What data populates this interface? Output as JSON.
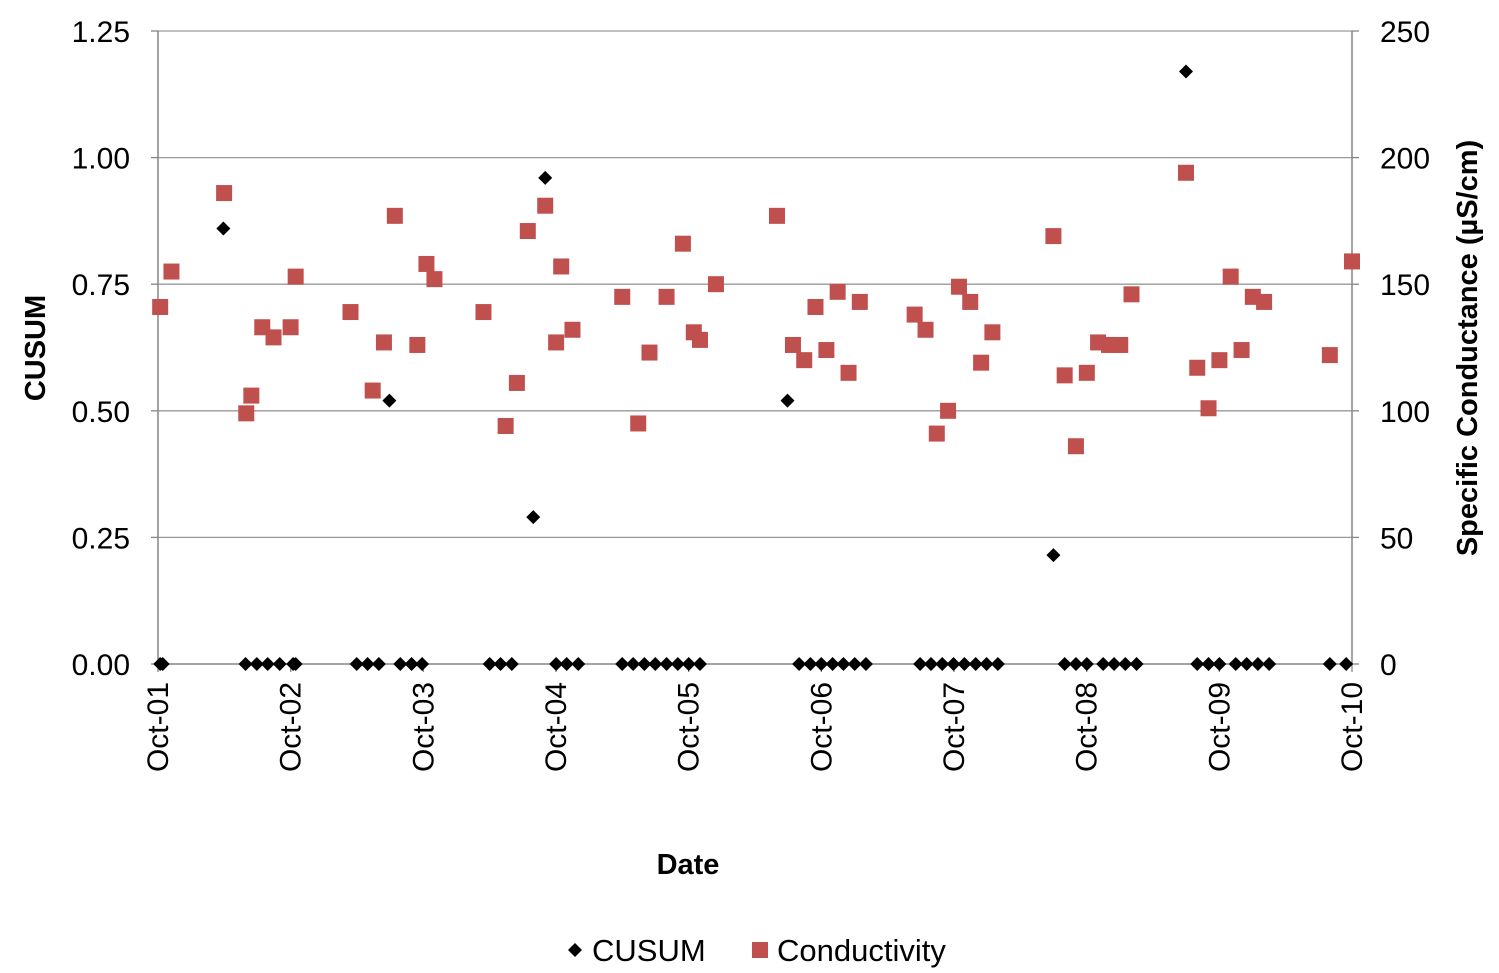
{
  "chart_data": {
    "type": "scatter",
    "title": "",
    "xlabel": "Date",
    "ylabel": "CUSUM",
    "y2label": "Specific Conductance (µS/cm)",
    "x_ticks": [
      "Oct-01",
      "Oct-02",
      "Oct-03",
      "Oct-04",
      "Oct-05",
      "Oct-06",
      "Oct-07",
      "Oct-08",
      "Oct-09",
      "Oct-10"
    ],
    "xlim": [
      "2001-10-01",
      "2010-10-01"
    ],
    "ylim": [
      0,
      1.25
    ],
    "y_ticks": [
      "0.00",
      "0.25",
      "0.50",
      "0.75",
      "1.00",
      "1.25"
    ],
    "y2lim": [
      0,
      250
    ],
    "y2_ticks": [
      "0",
      "50",
      "100",
      "150",
      "200",
      "250"
    ],
    "grid": "horizontal",
    "legend_position": "bottom",
    "series": [
      {
        "name": "CUSUM",
        "axis": "left",
        "marker": "diamond",
        "color": "#000000",
        "points": [
          [
            "2001-10-07",
            0
          ],
          [
            "2001-10-14",
            0
          ],
          [
            "2002-03-30",
            0.86
          ],
          [
            "2002-05-30",
            0
          ],
          [
            "2002-06-30",
            0
          ],
          [
            "2002-07-30",
            0
          ],
          [
            "2002-09-01",
            0
          ],
          [
            "2002-10-08",
            0
          ],
          [
            "2002-10-15",
            0
          ],
          [
            "2003-04-01",
            0
          ],
          [
            "2003-05-01",
            0
          ],
          [
            "2003-06-01",
            0
          ],
          [
            "2003-06-30",
            0.52
          ],
          [
            "2003-07-30",
            0
          ],
          [
            "2003-08-30",
            0
          ],
          [
            "2003-09-28",
            0
          ],
          [
            "2004-04-01",
            0
          ],
          [
            "2004-05-01",
            0
          ],
          [
            "2004-06-01",
            0
          ],
          [
            "2004-07-30",
            0.29
          ],
          [
            "2004-09-01",
            0.96
          ],
          [
            "2004-10-01",
            0
          ],
          [
            "2004-10-30",
            0
          ],
          [
            "2004-12-01",
            0
          ],
          [
            "2005-04-01",
            0
          ],
          [
            "2005-05-01",
            0
          ],
          [
            "2005-06-01",
            0
          ],
          [
            "2005-07-01",
            0
          ],
          [
            "2005-08-01",
            0
          ],
          [
            "2005-09-01",
            0
          ],
          [
            "2005-10-01",
            0
          ],
          [
            "2005-11-01",
            0
          ],
          [
            "2006-06-30",
            0.52
          ],
          [
            "2006-08-01",
            0
          ],
          [
            "2006-09-01",
            0
          ],
          [
            "2006-10-01",
            0
          ],
          [
            "2006-11-01",
            0
          ],
          [
            "2006-12-01",
            0
          ],
          [
            "2007-01-01",
            0
          ],
          [
            "2007-02-01",
            0
          ],
          [
            "2007-06-30",
            0
          ],
          [
            "2007-07-30",
            0
          ],
          [
            "2007-08-30",
            0
          ],
          [
            "2007-09-30",
            0
          ],
          [
            "2007-10-30",
            0
          ],
          [
            "2007-11-30",
            0
          ],
          [
            "2007-12-30",
            0
          ],
          [
            "2008-01-30",
            0
          ],
          [
            "2008-07-01",
            0.215
          ],
          [
            "2008-08-01",
            0
          ],
          [
            "2008-09-01",
            0
          ],
          [
            "2008-10-01",
            0
          ],
          [
            "2008-11-15",
            0
          ],
          [
            "2008-12-15",
            0
          ],
          [
            "2009-01-15",
            0
          ],
          [
            "2009-02-15",
            0
          ],
          [
            "2009-07-01",
            1.17
          ],
          [
            "2009-08-01",
            0
          ],
          [
            "2009-09-01",
            0
          ],
          [
            "2009-10-01",
            0
          ],
          [
            "2009-11-15",
            0
          ],
          [
            "2009-12-15",
            0
          ],
          [
            "2010-01-15",
            0
          ],
          [
            "2010-02-15",
            0
          ],
          [
            "2010-08-01",
            0
          ],
          [
            "2010-09-15",
            0
          ]
        ]
      },
      {
        "name": "Conductivity",
        "axis": "right",
        "marker": "square",
        "color": "#c0504d",
        "points": [
          [
            "2001-10-07",
            141
          ],
          [
            "2001-11-07",
            155
          ],
          [
            "2002-04-01",
            186
          ],
          [
            "2002-06-01",
            99
          ],
          [
            "2002-06-15",
            106
          ],
          [
            "2002-07-15",
            133
          ],
          [
            "2002-08-15",
            129
          ],
          [
            "2002-10-01",
            133
          ],
          [
            "2002-10-15",
            153
          ],
          [
            "2003-03-15",
            139
          ],
          [
            "2003-05-15",
            108
          ],
          [
            "2003-06-15",
            127
          ],
          [
            "2003-07-15",
            177
          ],
          [
            "2003-09-15",
            126
          ],
          [
            "2003-10-10",
            158
          ],
          [
            "2003-11-01",
            152
          ],
          [
            "2004-03-15",
            139
          ],
          [
            "2004-05-15",
            94
          ],
          [
            "2004-06-15",
            111
          ],
          [
            "2004-07-15",
            171
          ],
          [
            "2004-09-01",
            181
          ],
          [
            "2004-10-01",
            127
          ],
          [
            "2004-10-15",
            157
          ],
          [
            "2004-11-15",
            132
          ],
          [
            "2005-04-01",
            145
          ],
          [
            "2005-05-15",
            95
          ],
          [
            "2005-06-15",
            123
          ],
          [
            "2005-08-01",
            145
          ],
          [
            "2005-09-15",
            166
          ],
          [
            "2005-10-15",
            131
          ],
          [
            "2005-11-01",
            128
          ],
          [
            "2005-12-15",
            150
          ],
          [
            "2006-06-01",
            177
          ],
          [
            "2006-07-15",
            126
          ],
          [
            "2006-08-15",
            120
          ],
          [
            "2006-09-15",
            141
          ],
          [
            "2006-10-15",
            124
          ],
          [
            "2006-11-15",
            147
          ],
          [
            "2006-12-15",
            115
          ],
          [
            "2007-01-15",
            143
          ],
          [
            "2007-06-15",
            138
          ],
          [
            "2007-07-15",
            132
          ],
          [
            "2007-08-15",
            91
          ],
          [
            "2007-09-15",
            100
          ],
          [
            "2007-10-15",
            149
          ],
          [
            "2007-11-15",
            143
          ],
          [
            "2007-12-15",
            119
          ],
          [
            "2008-01-15",
            131
          ],
          [
            "2008-07-01",
            169
          ],
          [
            "2008-08-01",
            114
          ],
          [
            "2008-09-01",
            86
          ],
          [
            "2008-10-01",
            115
          ],
          [
            "2008-11-01",
            127
          ],
          [
            "2008-12-01",
            126
          ],
          [
            "2009-01-01",
            126
          ],
          [
            "2009-02-01",
            146
          ],
          [
            "2009-07-01",
            194
          ],
          [
            "2009-08-01",
            117
          ],
          [
            "2009-09-01",
            101
          ],
          [
            "2009-10-01",
            120
          ],
          [
            "2009-11-01",
            153
          ],
          [
            "2009-12-01",
            124
          ],
          [
            "2010-01-01",
            145
          ],
          [
            "2010-02-01",
            143
          ],
          [
            "2010-08-01",
            122
          ],
          [
            "2010-10-01",
            159
          ]
        ]
      }
    ]
  }
}
